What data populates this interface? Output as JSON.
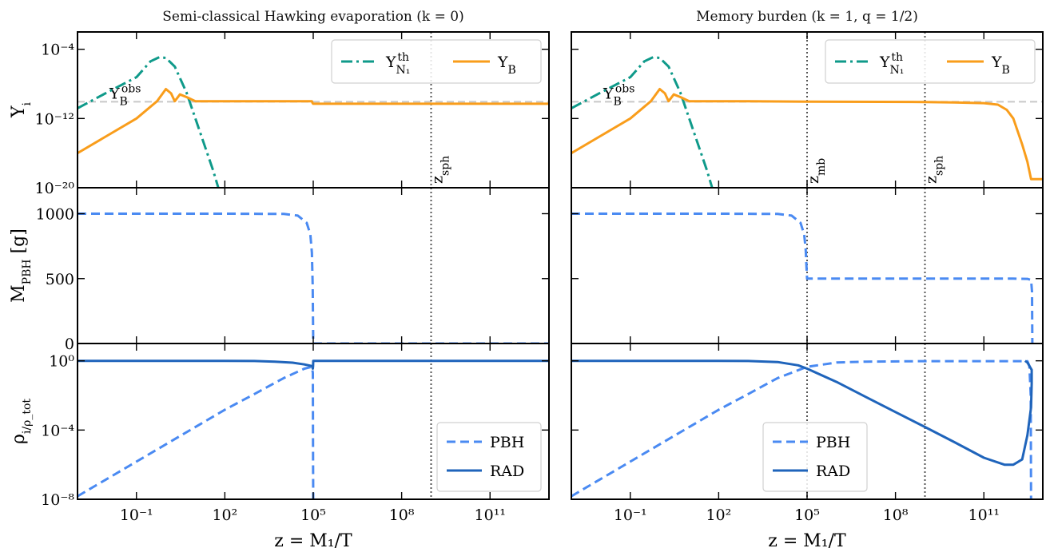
{
  "chart_data": {
    "type": "line",
    "x_label": "z = M₁/T",
    "x_scale": "log",
    "xlim": [
      0.001,
      10000000000000.0
    ],
    "x_ticks": [
      0.1,
      100,
      100000,
      100000000,
      100000000000
    ],
    "x_tick_labels": [
      "10⁻¹",
      "10²",
      "10⁵",
      "10⁸",
      "10¹¹"
    ],
    "columns": [
      {
        "title": "Semi-classical Hawking evaporation (k = 0)",
        "vlines": [
          {
            "x": 1000000000,
            "label": "z_sph"
          }
        ],
        "rows": [
          {
            "ylabel": "Y_i",
            "y_scale": "log",
            "ylim": [
              1e-20,
              0.01
            ],
            "y_ticks": [
              1e-20,
              1e-12,
              0.0001
            ],
            "y_tick_labels": [
              "10⁻²⁰",
              "10⁻¹²",
              "10⁻⁴"
            ],
            "hline": {
              "y": 8.7e-11,
              "label": "Y_B^obs"
            },
            "legend": "top-right",
            "series": [
              {
                "name": "Y_N1^th",
                "color": "#0f9a8a",
                "dash": "dashdot",
                "x": [
                  0.001,
                  0.01,
                  0.1,
                  0.3,
                  0.6,
                  1,
                  2,
                  5,
                  10,
                  20,
                  40,
                  60
                ],
                "y": [
                  1.5e-11,
                  1e-09,
                  6e-08,
                  4e-06,
                  1.2e-05,
                  1e-05,
                  1e-06,
                  1e-09,
                  1e-12,
                  1e-15,
                  1e-18,
                  1e-20
                ]
              },
              {
                "name": "Y_B",
                "color": "#f99d1b",
                "dash": "solid",
                "x": [
                  0.001,
                  0.01,
                  0.1,
                  0.5,
                  1,
                  1.5,
                  2,
                  3,
                  5,
                  10,
                  100,
                  1000,
                  10000,
                  90000,
                  95000,
                  100000,
                  10000000.0,
                  1000000000.0,
                  100000000000.0,
                  10000000000000.0
                ],
                "y": [
                  1e-16,
                  1e-14,
                  1e-12,
                  1e-10,
                  2.5e-09,
                  8e-10,
                  1e-10,
                  6e-10,
                  3e-10,
                  1e-10,
                  1e-10,
                  1e-10,
                  1e-10,
                  1e-10,
                  6e-11,
                  5e-11,
                  5e-11,
                  5e-11,
                  5e-11,
                  5e-11
                ]
              }
            ]
          },
          {
            "ylabel": "M_PBH [g]",
            "y_scale": "linear",
            "ylim": [
              0,
              1200
            ],
            "y_ticks": [
              0,
              500,
              1000
            ],
            "y_tick_labels": [
              "0",
              "500",
              "1000"
            ],
            "series": [
              {
                "name": "M_PBH",
                "color": "#4a8af2",
                "dash": "dashed",
                "x": [
                  0.001,
                  100,
                  10000,
                  30000,
                  60000,
                  80000,
                  90000,
                  96000,
                  100000,
                  10000000000000.0
                ],
                "y": [
                  1000,
                  1000,
                  998,
                  985,
                  930,
                  840,
                  700,
                  450,
                  0,
                  0
                ]
              }
            ]
          },
          {
            "ylabel": "ρ_i/ρ_tot",
            "y_scale": "log",
            "ylim": [
              1e-08,
              10.0
            ],
            "y_ticks": [
              1e-08,
              0.0001,
              1
            ],
            "y_tick_labels": [
              "10⁻⁸",
              "10⁻⁴",
              "10⁰"
            ],
            "legend": "bottom-right",
            "series": [
              {
                "name": "PBH",
                "color": "#4a8af2",
                "dash": "dashed",
                "x": [
                  0.001,
                  1,
                  100,
                  1000,
                  10000,
                  50000,
                  90000,
                  97000,
                  99000,
                  100000
                ],
                "y": [
                  1.5e-08,
                  1.5e-05,
                  0.0015,
                  0.012,
                  0.1,
                  0.35,
                  0.45,
                  0.2,
                  1e-06,
                  1e-08
                ]
              },
              {
                "name": "RAD",
                "color": "#1f64bb",
                "dash": "solid",
                "x": [
                  0.001,
                  100,
                  1000,
                  5000,
                  20000,
                  50000,
                  90000,
                  97000,
                  99000,
                  100000,
                  10000000000000.0
                ],
                "y": [
                  1,
                  1,
                  0.98,
                  0.9,
                  0.78,
                  0.62,
                  0.5,
                  0.35,
                  0.5,
                  1,
                  1
                ]
              }
            ]
          }
        ]
      },
      {
        "title": "Memory burden (k = 1, q = 1/2)",
        "vlines": [
          {
            "x": 100000,
            "label": "z_mb"
          },
          {
            "x": 1000000000,
            "label": "z_sph"
          }
        ],
        "rows": [
          {
            "ylabel": "",
            "y_scale": "log",
            "ylim": [
              1e-20,
              0.01
            ],
            "y_ticks": [
              1e-20,
              1e-12,
              0.0001
            ],
            "y_tick_labels": [],
            "hline": {
              "y": 8.7e-11,
              "label": "Y_B^obs"
            },
            "legend": "top-right",
            "series": [
              {
                "name": "Y_N1^th",
                "color": "#0f9a8a",
                "dash": "dashdot",
                "x": [
                  0.001,
                  0.01,
                  0.1,
                  0.3,
                  0.6,
                  1,
                  2,
                  5,
                  10,
                  20,
                  40,
                  60
                ],
                "y": [
                  1.5e-11,
                  1e-09,
                  6e-08,
                  4e-06,
                  1.2e-05,
                  1e-05,
                  1e-06,
                  1e-09,
                  1e-12,
                  1e-15,
                  1e-18,
                  1e-20
                ]
              },
              {
                "name": "Y_B",
                "color": "#f99d1b",
                "dash": "solid",
                "x": [
                  0.001,
                  0.01,
                  0.1,
                  0.5,
                  1,
                  1.5,
                  2,
                  3,
                  5,
                  10,
                  1000,
                  100000,
                  1000000000.0,
                  10000000000.0,
                  100000000000.0,
                  300000000000.0,
                  600000000000.0,
                  1000000000000.0,
                  2000000000000.0,
                  3000000000000.0,
                  4000000000000.0,
                  10000000000000.0
                ],
                "y": [
                  1e-16,
                  1e-14,
                  1e-12,
                  1e-10,
                  2.5e-09,
                  8e-10,
                  1e-10,
                  6e-10,
                  3e-10,
                  1e-10,
                  1e-10,
                  9e-11,
                  8e-11,
                  7e-11,
                  6e-11,
                  4e-11,
                  1e-11,
                  1e-12,
                  1e-15,
                  1e-17,
                  1e-19,
                  1e-19
                ]
              }
            ]
          },
          {
            "ylabel": "",
            "y_scale": "linear",
            "ylim": [
              0,
              1200
            ],
            "y_ticks": [
              0,
              500,
              1000
            ],
            "y_tick_labels": [],
            "series": [
              {
                "name": "M_PBH",
                "color": "#4a8af2",
                "dash": "dashed",
                "x": [
                  0.001,
                  100,
                  10000,
                  30000,
                  60000,
                  80000,
                  90000,
                  95000,
                  100000,
                  110000,
                  1000000000.0,
                  1000000000000.0,
                  3000000000000.0,
                  4000000000000.0,
                  4300000000000.0,
                  4400000000000.0
                ],
                "y": [
                  1000,
                  1000,
                  998,
                  985,
                  930,
                  840,
                  720,
                  600,
                  500,
                  500,
                  500,
                  500,
                  498,
                  490,
                  400,
                  0
                ]
              }
            ]
          },
          {
            "ylabel": "",
            "y_scale": "log",
            "ylim": [
              1e-08,
              10.0
            ],
            "y_ticks": [
              1e-08,
              0.0001,
              1
            ],
            "y_tick_labels": [],
            "legend": "bottom-center",
            "series": [
              {
                "name": "PBH",
                "color": "#4a8af2",
                "dash": "dashed",
                "x": [
                  0.001,
                  1,
                  100,
                  1000,
                  10000,
                  100000,
                  1000000,
                  10000000.0,
                  1000000000.0,
                  1000000000000.0,
                  3000000000000.0,
                  3500000000000.0,
                  3900000000000.0,
                  4000000000000.0
                ],
                "y": [
                  1.5e-08,
                  1.5e-05,
                  0.0015,
                  0.012,
                  0.1,
                  0.45,
                  0.8,
                  0.9,
                  0.95,
                  0.95,
                  0.95,
                  0.5,
                  0.01,
                  1e-08
                ]
              },
              {
                "name": "RAD",
                "color": "#1f64bb",
                "dash": "solid",
                "x": [
                  0.001,
                  100,
                  1000,
                  10000,
                  50000,
                  100000,
                  1000000,
                  10000000.0,
                  100000000.0,
                  1000000000.0,
                  10000000000.0,
                  100000000000.0,
                  500000000000.0,
                  1000000000000.0,
                  2000000000000.0,
                  3000000000000.0,
                  4000000000000.0,
                  4200000000000.0,
                  4200000000000.0,
                  3000000000000.0,
                  2500000000000.0
                ],
                "y": [
                  1,
                  1,
                  0.98,
                  0.85,
                  0.55,
                  0.35,
                  0.06,
                  0.008,
                  0.0011,
                  0.00015,
                  2e-05,
                  2.5e-06,
                  1e-06,
                  1e-06,
                  2e-06,
                  5e-05,
                  0.002,
                  0.05,
                  0.3,
                  0.8,
                  1
                ]
              }
            ]
          }
        ]
      }
    ]
  }
}
